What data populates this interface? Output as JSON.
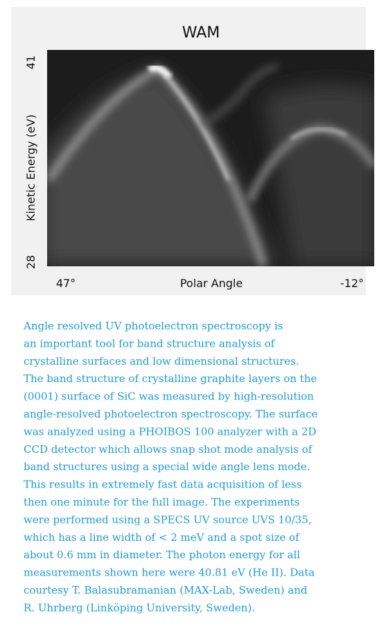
{
  "figure": {
    "title": "WAM",
    "y_max": "41",
    "y_label": "Kinetic Energy (eV)",
    "y_min": "28",
    "x_left": "47°",
    "x_label": "Polar Angle",
    "x_right": "-12°"
  },
  "description": {
    "lines": [
      "Angle resolved UV photoelectron spectroscopy is",
      "an important tool for band structure analysis of",
      "crystalline surfaces and low dimensional structures.",
      "The band structure of crystalline graphite layers on the",
      "(0001) surface of SiC was measured by high-resolution",
      "angle-resolved photoelectron spectroscopy. The surface",
      "was analyzed using a PHOIBOS 100 analyzer with a 2D",
      "CCD detector which allows snap shot mode analysis of",
      "band structures using a special wide angle lens mode.",
      "This results in extremely fast data acquisition of less",
      "then one minute for the full image. The experiments",
      "were performed using a SPECS UV source UVS 10/35,",
      "which has a line width of < 2 meV and a spot size of",
      "about 0.6 mm in diameter. The photon energy for all",
      "measurements shown here were 40.81 eV (He II). Data",
      "courtesy T. Balasubramanian (MAX-Lab, Sweden) and",
      "R. Uhrberg (Linköping University, Sweden)."
    ]
  }
}
